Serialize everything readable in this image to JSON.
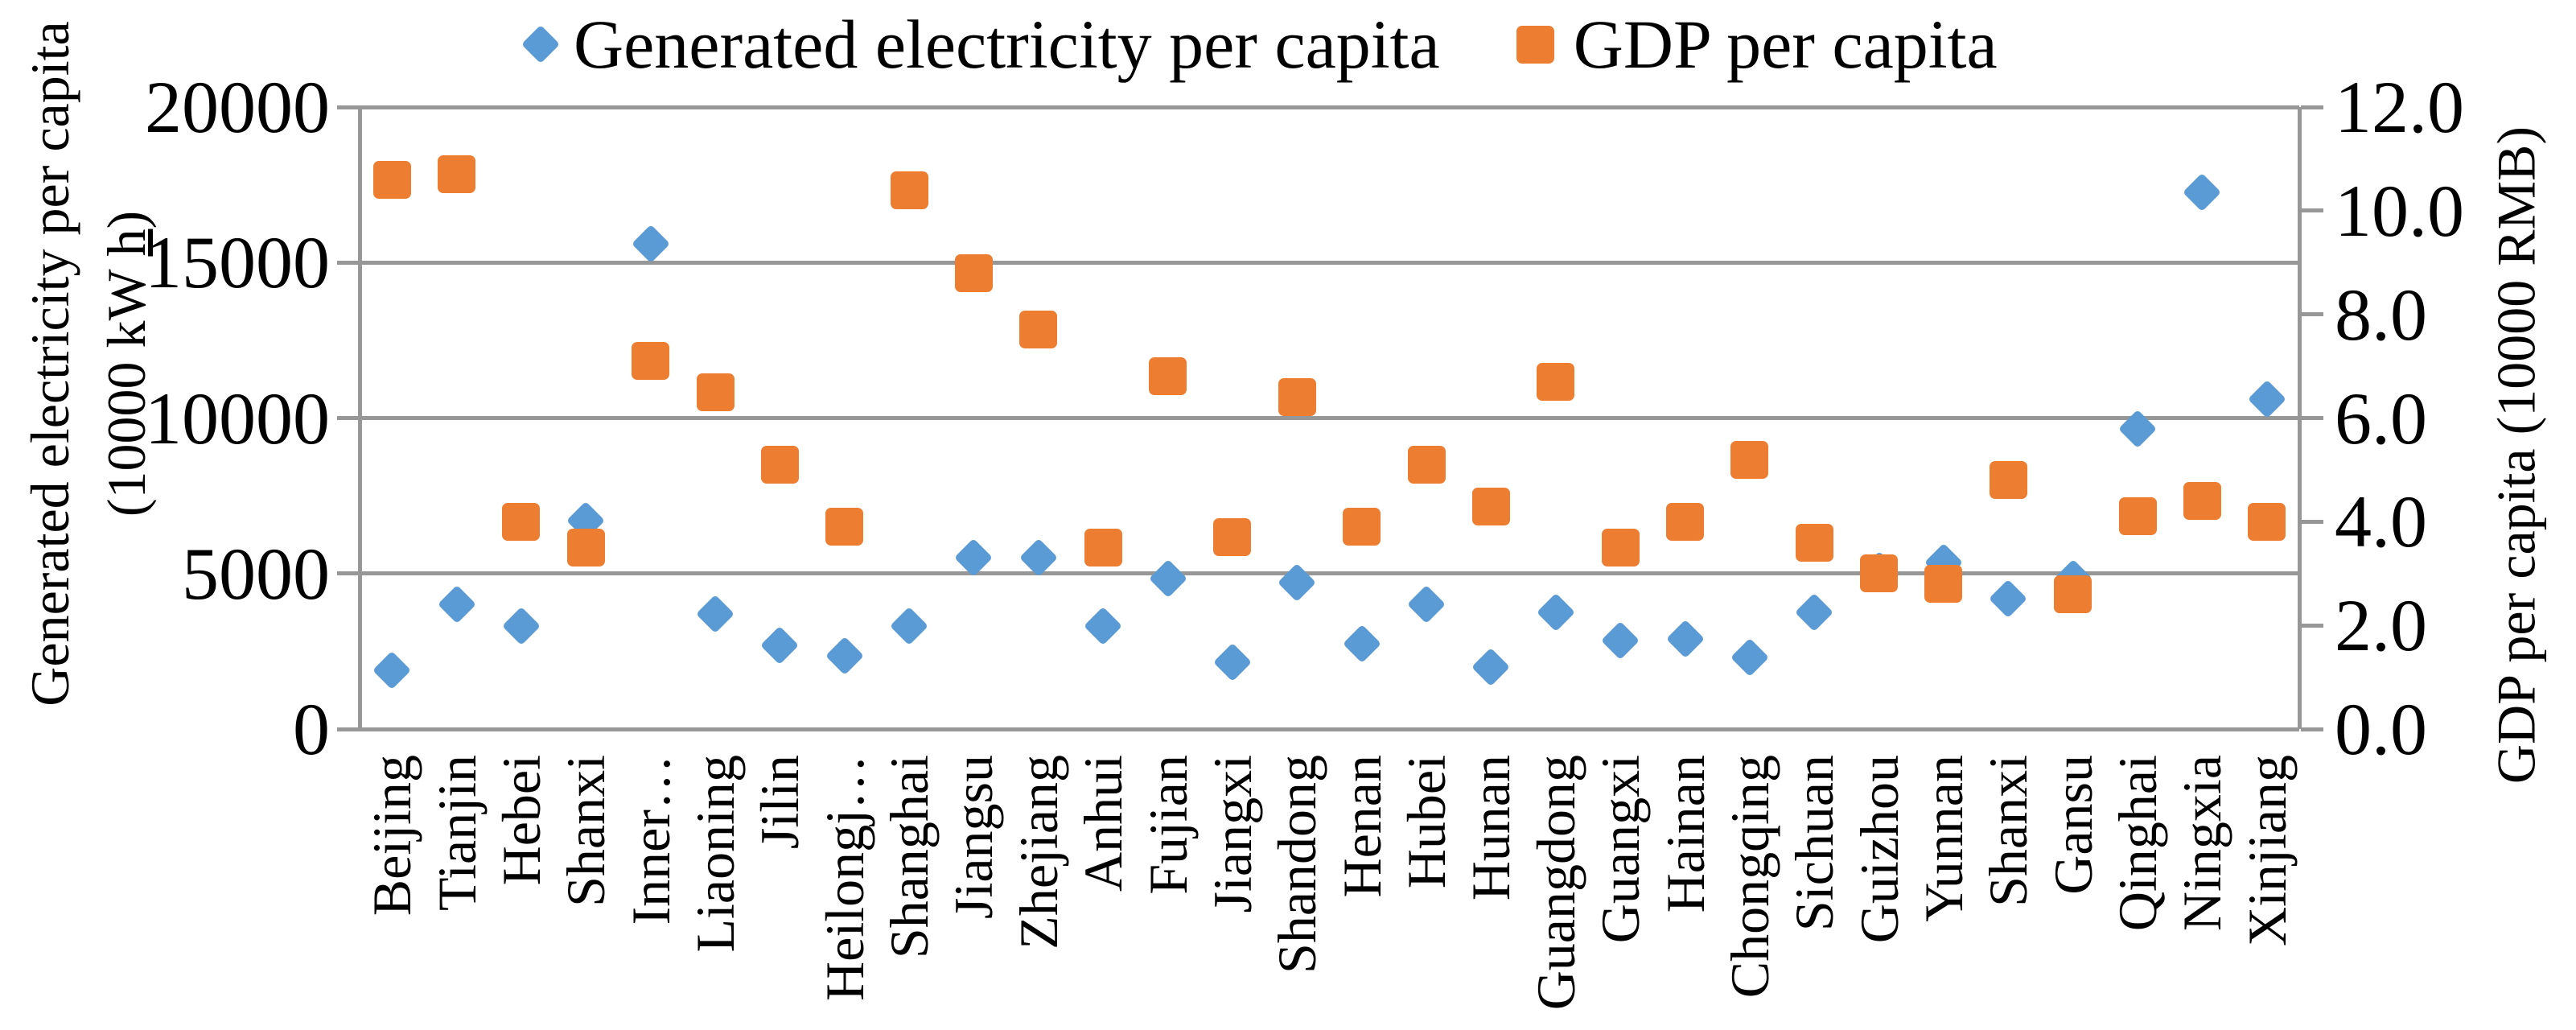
{
  "chart_data": {
    "type": "scatter",
    "title": "",
    "categories": [
      "Beijing",
      "Tianjin",
      "Hebei",
      "Shanxi",
      "Inner…",
      "Liaoning",
      "Jilin",
      "Heilongj…",
      "Shanghai",
      "Jiangsu",
      "Zhejiang",
      "Anhui",
      "Fujian",
      "Jiangxi",
      "Shandong",
      "Henan",
      "Hubei",
      "Hunan",
      "Guangdong",
      "Guangxi",
      "Hainan",
      "Chongqing",
      "Sichuan",
      "Guizhou",
      "Yunnan",
      "Shanxi",
      "Gansu",
      "Qinghai",
      "Ningxia",
      "Xinjiang"
    ],
    "series": [
      {
        "name": "Generated electricity per capita",
        "axis": "left",
        "marker": "diamond",
        "color": "#5B9BD5",
        "values": [
          1900,
          4000,
          3300,
          6700,
          15600,
          3700,
          2700,
          2350,
          3300,
          5500,
          5500,
          3300,
          4850,
          2150,
          4700,
          2750,
          4000,
          2000,
          3750,
          2850,
          2900,
          2300,
          3750,
          5100,
          5350,
          4200,
          4850,
          9650,
          17250,
          10600
        ]
      },
      {
        "name": "GDP per capita",
        "axis": "right",
        "marker": "square",
        "color": "#ED7D31",
        "values": [
          10.6,
          10.7,
          4.0,
          3.5,
          7.1,
          6.5,
          5.1,
          3.9,
          10.4,
          8.8,
          7.7,
          3.5,
          6.8,
          3.7,
          6.4,
          3.9,
          5.1,
          4.3,
          6.7,
          3.5,
          4.0,
          5.2,
          3.6,
          3.0,
          2.8,
          4.8,
          2.6,
          4.1,
          4.4,
          4.0
        ]
      }
    ],
    "y_left": {
      "title_line1": "Generated electricity per capita",
      "title_line2_prefix": "(10000 kW ",
      "title_line2_underline": "h",
      "title_line2_suffix": ")",
      "ticks": [
        "0",
        "5000",
        "10000",
        "15000",
        "20000"
      ],
      "tick_values": [
        0,
        5000,
        10000,
        15000,
        20000
      ],
      "range": [
        0,
        20000
      ]
    },
    "y_right": {
      "title": "GDP per capita (10000 RMB)",
      "ticks": [
        "0.0",
        "2.0",
        "4.0",
        "6.0",
        "8.0",
        "10.0",
        "12.0"
      ],
      "tick_values": [
        0,
        2,
        4,
        6,
        8,
        10,
        12
      ],
      "range": [
        0,
        12
      ]
    },
    "legend_position": "top",
    "grid": "horizontal-only",
    "colors": {
      "series1": "#5B9BD5",
      "series2": "#ED7D31",
      "gridline": "#979797",
      "text": "#000000",
      "background": "#FFFFFF"
    }
  }
}
